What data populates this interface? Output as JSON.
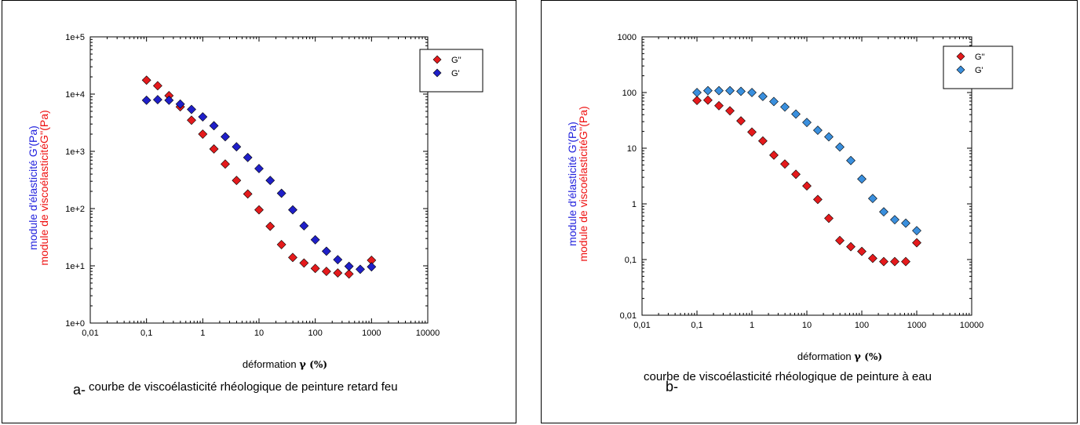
{
  "chart_data": [
    {
      "type": "scatter",
      "prefix": "a-",
      "caption": "courbe de viscoélasticité rhéologique de peinture retard feu",
      "xlabel_main": "déformation ",
      "xlabel_symbol": "γ",
      "xlabel_unit": "(%)",
      "ylabel_line1": "module d'élasticité G'(Pa)",
      "ylabel_line2": "module de viscoélasticitéG''(Pa)",
      "x_scale": "log",
      "y_scale": "log",
      "xlim": [
        0.01,
        10000
      ],
      "ylim": [
        1,
        100000
      ],
      "x_ticks": [
        "0,01",
        "0,1",
        "1",
        "10",
        "100",
        "1000",
        "10000"
      ],
      "y_ticks": [
        "1e+0",
        "1e+1",
        "1e+2",
        "1e+3",
        "1e+4",
        "1e+5"
      ],
      "legend_position": "top-right",
      "series": [
        {
          "name": "G''",
          "color": "#e41a1c",
          "x": [
            0.1,
            0.158,
            0.251,
            0.398,
            0.631,
            1,
            1.58,
            2.51,
            3.98,
            6.31,
            10,
            15.8,
            25.1,
            39.8,
            63.1,
            100,
            158,
            251,
            398,
            1000
          ],
          "y": [
            17500,
            14000,
            9400,
            6000,
            3500,
            2000,
            1100,
            600,
            310,
            180,
            95,
            49,
            23.5,
            14,
            11.2,
            9,
            8,
            7.5,
            7.2,
            12.5
          ]
        },
        {
          "name": "G'",
          "color": "#1f1fc8",
          "x": [
            0.1,
            0.158,
            0.251,
            0.398,
            0.631,
            1,
            1.58,
            2.51,
            3.98,
            6.31,
            10,
            15.8,
            25.1,
            39.8,
            63.1,
            100,
            158,
            251,
            398,
            631,
            1000
          ],
          "y": [
            7800,
            8000,
            7800,
            6700,
            5400,
            4000,
            2800,
            1800,
            1200,
            780,
            500,
            310,
            185,
            95,
            50,
            28.5,
            18,
            12.8,
            9.8,
            8.7,
            9.6
          ]
        }
      ]
    },
    {
      "type": "scatter",
      "prefix": "b-",
      "caption": "courbe de viscoélasticité rhéologique de peinture à eau",
      "xlabel_main": "déformation ",
      "xlabel_symbol": "γ",
      "xlabel_unit": "(%)",
      "ylabel_line1": "module d'élasticité G'(Pa)",
      "ylabel_line2": "module de viscoélasticitéG''(Pa)",
      "x_scale": "log",
      "y_scale": "log",
      "xlim": [
        0.01,
        10000
      ],
      "ylim": [
        0.01,
        1000
      ],
      "x_ticks": [
        "0,01",
        "0,1",
        "1",
        "10",
        "100",
        "1000",
        "10000"
      ],
      "y_ticks": [
        "0,01",
        "0,1",
        "1",
        "10",
        "100",
        "1000"
      ],
      "legend_position": "top-right",
      "series": [
        {
          "name": "G''",
          "color": "#e41a1c",
          "x": [
            0.1,
            0.158,
            0.251,
            0.398,
            0.631,
            1,
            1.58,
            2.51,
            3.98,
            6.31,
            10,
            15.8,
            25.1,
            39.8,
            63.1,
            100,
            158,
            251,
            398,
            631,
            1000
          ],
          "y": [
            72,
            73,
            58,
            47,
            31,
            19.5,
            13.5,
            7.5,
            5.2,
            3.4,
            2.1,
            1.2,
            0.55,
            0.22,
            0.17,
            0.14,
            0.105,
            0.092,
            0.092,
            0.092,
            0.2
          ]
        },
        {
          "name": "G'",
          "color": "#3a8fdd",
          "x": [
            0.1,
            0.158,
            0.251,
            0.398,
            0.631,
            1,
            1.58,
            2.51,
            3.98,
            6.31,
            10,
            15.8,
            25.1,
            39.8,
            63.1,
            100,
            158,
            251,
            398,
            631,
            1000
          ],
          "y": [
            100,
            108,
            108,
            108,
            105,
            100,
            85,
            69,
            55,
            41,
            29,
            21,
            16,
            10.5,
            6,
            2.8,
            1.25,
            0.72,
            0.52,
            0.45,
            0.33
          ]
        }
      ]
    }
  ]
}
